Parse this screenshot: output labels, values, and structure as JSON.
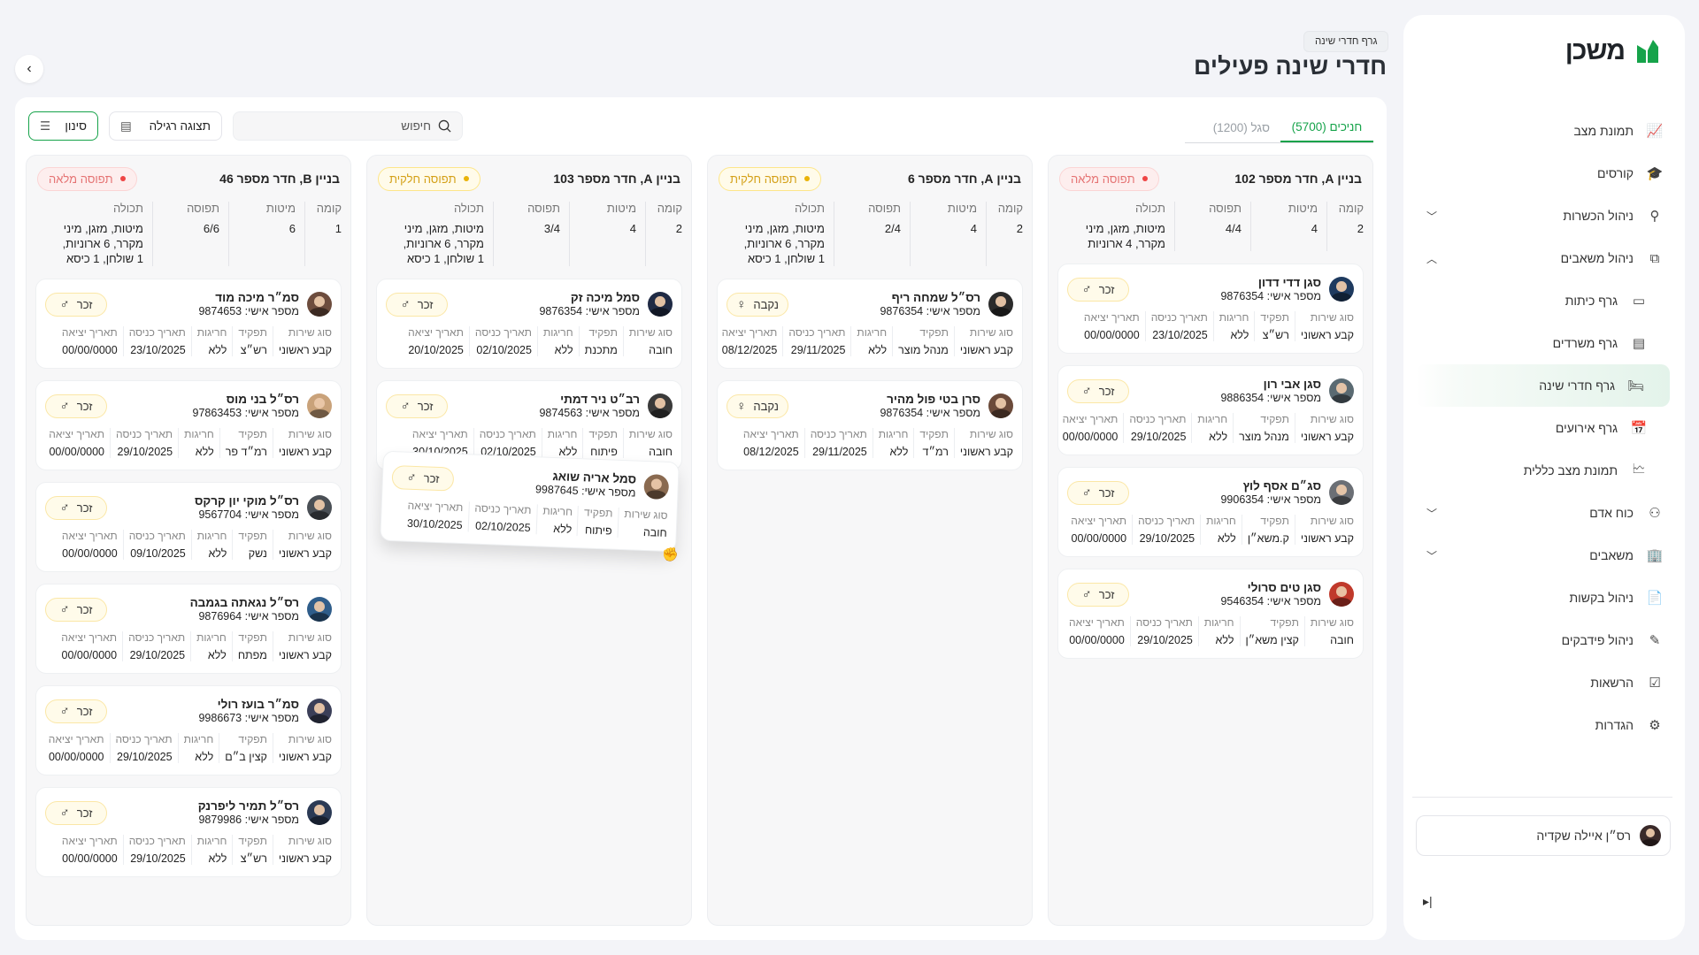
{
  "app": {
    "logo_text": "משכן",
    "brand_color": "#16a34a"
  },
  "header": {
    "breadcrumb": "גרף חדרי שינה",
    "title": "חדרי שינה פעילים"
  },
  "sidebar": {
    "items": [
      {
        "label": "תמונת מצב",
        "icon": "chart-line-icon",
        "glyph": "📈"
      },
      {
        "label": "קורסים",
        "icon": "graduation-cap-icon",
        "glyph": "🎓"
      },
      {
        "label": "ניהול הכשרות",
        "icon": "hierarchy-icon",
        "glyph": "⚲",
        "chevron": "down"
      },
      {
        "label": "ניהול משאבים",
        "icon": "flow-icon",
        "glyph": "⧉",
        "chevron": "up"
      },
      {
        "label": "גרף כיתות",
        "icon": "classroom-icon",
        "glyph": "▭",
        "sub": true
      },
      {
        "label": "גרף משרדים",
        "icon": "office-icon",
        "glyph": "▤",
        "sub": true
      },
      {
        "label": "גרף חדרי שינה",
        "icon": "bed-icon",
        "glyph": "🛏",
        "sub": true,
        "active": true
      },
      {
        "label": "גרף אירועים",
        "icon": "calendar-icon",
        "glyph": "📅",
        "sub": true
      },
      {
        "label": "תמונת מצב כללית",
        "icon": "overview-icon",
        "glyph": "🗠",
        "sub": true
      },
      {
        "label": "כוח אדם",
        "icon": "people-icon",
        "glyph": "⚇",
        "chevron": "down"
      },
      {
        "label": "משאבים",
        "icon": "building-icon",
        "glyph": "🏢",
        "chevron": "down"
      },
      {
        "label": "ניהול בקשות",
        "icon": "document-icon",
        "glyph": "📄"
      },
      {
        "label": "ניהול פידבקים",
        "icon": "feedback-icon",
        "glyph": "✎"
      },
      {
        "label": "הרשאות",
        "icon": "permissions-icon",
        "glyph": "☑"
      },
      {
        "label": "הגדרות",
        "icon": "gear-icon",
        "glyph": "⚙"
      }
    ],
    "user": {
      "name": "רס״ן איילה שקדיה"
    }
  },
  "tabs": [
    {
      "label": "חניכים (5700)",
      "active": true
    },
    {
      "label": "סגל (1200)",
      "active": false
    }
  ],
  "toolbar": {
    "search_placeholder": "חיפוש",
    "view_label": "תצוגה רגילה",
    "filter_label": "סינון"
  },
  "labels": {
    "floor": "קומה",
    "beds": "מיטות",
    "occupancy": "תפוסה",
    "contents": "תכולה",
    "service": "סוג שירות",
    "role": "תפקיד",
    "exceptions": "חריגות",
    "entry": "תאריך כניסה",
    "exit": "תאריך יציאה",
    "id_prefix": "מספר אישי: "
  },
  "status_colors": {
    "full": "#ef4444",
    "partial": "#eab308"
  },
  "columns": [
    {
      "title": "בניין A, חדר מספר 102",
      "status": "תפוסה מלאה",
      "status_type": "full",
      "floor": "2",
      "beds": "4",
      "occupancy": "4/4",
      "contents": "מיטות, מזגן, מיני מקרר, 4 ארוניות",
      "residents": [
        {
          "name": "סגן דדי דדון",
          "id": "9876354",
          "gender": "זכר",
          "gender_icon": "male-icon",
          "service": "קבע ראשוני",
          "role": "רש״צ",
          "exceptions": "ללא",
          "entry": "23/10/2025",
          "exit": "00/00/0000",
          "avatar_color": "#1e3a5f"
        },
        {
          "name": "סגן אבי רון",
          "id": "9886354",
          "gender": "זכר",
          "gender_icon": "male-icon",
          "service": "קבע ראשוני",
          "role": "מנהל מוצר",
          "exceptions": "ללא",
          "entry": "29/10/2025",
          "exit": "00/00/0000",
          "avatar_color": "#5a6a72"
        },
        {
          "name": "סג״ם אסף לוץ",
          "id": "9906354",
          "gender": "זכר",
          "gender_icon": "male-icon",
          "service": "קבע ראשוני",
          "role": "ק.משא״ן",
          "exceptions": "ללא",
          "entry": "29/10/2025",
          "exit": "00/00/0000",
          "avatar_color": "#6b6f75"
        },
        {
          "name": "סגן טים סרולי",
          "id": "9546354",
          "gender": "זכר",
          "gender_icon": "male-icon",
          "service": "חובה",
          "role": "קצין משא״ן",
          "exceptions": "ללא",
          "entry": "29/10/2025",
          "exit": "00/00/0000",
          "avatar_color": "#c0392b"
        }
      ]
    },
    {
      "title": "בניין A, חדר מספר 6",
      "status": "תפוסה חלקית",
      "status_type": "partial",
      "floor": "2",
      "beds": "4",
      "occupancy": "2/4",
      "contents": "מיטות, מזגן, מיני מקרר, 6 ארוניות, 1 שולחן, 1 כיסא",
      "residents": [
        {
          "name": "רס״ל שמחה ריף",
          "id": "9876354",
          "gender": "נקבה",
          "gender_icon": "female-icon",
          "service": "קבע ראשוני",
          "role": "מנהל מוצר",
          "exceptions": "ללא",
          "entry": "29/11/2025",
          "exit": "08/12/2025",
          "avatar_color": "#2b2b2b"
        },
        {
          "name": "סרן בטי פול מהיר",
          "id": "9876354",
          "gender": "נקבה",
          "gender_icon": "female-icon",
          "service": "קבע ראשוני",
          "role": "רמ״ד",
          "exceptions": "ללא",
          "entry": "29/11/2025",
          "exit": "08/12/2025",
          "avatar_color": "#6b4a3a"
        }
      ]
    },
    {
      "title": "בניין A, חדר מספר 103",
      "status": "תפוסה חלקית",
      "status_type": "partial",
      "floor": "2",
      "beds": "4",
      "occupancy": "3/4",
      "contents": "מיטות, מזגן, מיני מקרר, 6 ארוניות, 1 שולחן, 1 כיסא",
      "residents": [
        {
          "name": "סמל מיכה זק",
          "id": "9876354",
          "gender": "זכר",
          "gender_icon": "male-icon",
          "service": "חובה",
          "role": "מתכנת",
          "exceptions": "ללא",
          "entry": "02/10/2025",
          "exit": "20/10/2025",
          "avatar_color": "#1f2a44"
        },
        {
          "name": "רב״ט ניר דמתי",
          "id": "9874563",
          "gender": "זכר",
          "gender_icon": "male-icon",
          "service": "חובה",
          "role": "פיתוח",
          "exceptions": "ללא",
          "entry": "02/10/2025",
          "exit": "30/10/2025",
          "avatar_color": "#3a3a3a"
        }
      ],
      "dragging": {
        "name": "סמל אריה שואג",
        "id": "9987645",
        "gender": "זכר",
        "gender_icon": "male-icon",
        "service": "חובה",
        "role": "פיתוח",
        "exceptions": "ללא",
        "entry": "02/10/2025",
        "exit": "30/10/2025",
        "avatar_color": "#8a6a50"
      }
    },
    {
      "title": "בניין B, חדר מספר 46",
      "status": "תפוסה מלאה",
      "status_type": "full",
      "floor": "1",
      "beds": "6",
      "occupancy": "6/6",
      "contents": "מיטות, מזגן, מיני מקרר, 6 ארוניות, 1 שולחן, 1 כיסא",
      "residents": [
        {
          "name": "סמ״ר מיכה מוד",
          "id": "9874653",
          "gender": "זכר",
          "gender_icon": "male-icon",
          "service": "קבע ראשוני",
          "role": "רש״צ",
          "exceptions": "ללא",
          "entry": "23/10/2025",
          "exit": "00/00/0000",
          "avatar_color": "#6d4c3d"
        },
        {
          "name": "רס״ל בני מוס",
          "id": "97863453",
          "gender": "זכר",
          "gender_icon": "male-icon",
          "service": "קבע ראשוני",
          "role": "רמ״ד פר",
          "exceptions": "ללא",
          "entry": "29/10/2025",
          "exit": "00/00/0000",
          "avatar_color": "#c9a27a"
        },
        {
          "name": "רס״ל מוקי יון קרקס",
          "id": "9567704",
          "gender": "זכר",
          "gender_icon": "male-icon",
          "service": "קבע ראשוני",
          "role": "נשק",
          "exceptions": "ללא",
          "entry": "09/10/2025",
          "exit": "00/00/0000",
          "avatar_color": "#4a4f55"
        },
        {
          "name": "רס״ל נגאתה בגמבה",
          "id": "9876964",
          "gender": "זכר",
          "gender_icon": "male-icon",
          "service": "קבע ראשוני",
          "role": "מפתח",
          "exceptions": "ללא",
          "entry": "29/10/2025",
          "exit": "00/00/0000",
          "avatar_color": "#2f5d8a"
        },
        {
          "name": "סמ״ר בועז רולי",
          "id": "9986673",
          "gender": "זכר",
          "gender_icon": "male-icon",
          "service": "קבע ראשוני",
          "role": "קצין ב״ם",
          "exceptions": "ללא",
          "entry": "29/10/2025",
          "exit": "00/00/0000",
          "avatar_color": "#3b3f58"
        },
        {
          "name": "רס״ל תמיר ליפרנק",
          "id": "9879986",
          "gender": "זכר",
          "gender_icon": "male-icon",
          "service": "קבע ראשוני",
          "role": "רש״צ",
          "exceptions": "ללא",
          "entry": "29/10/2025",
          "exit": "00/00/0000",
          "avatar_color": "#2b3a55"
        }
      ]
    }
  ]
}
